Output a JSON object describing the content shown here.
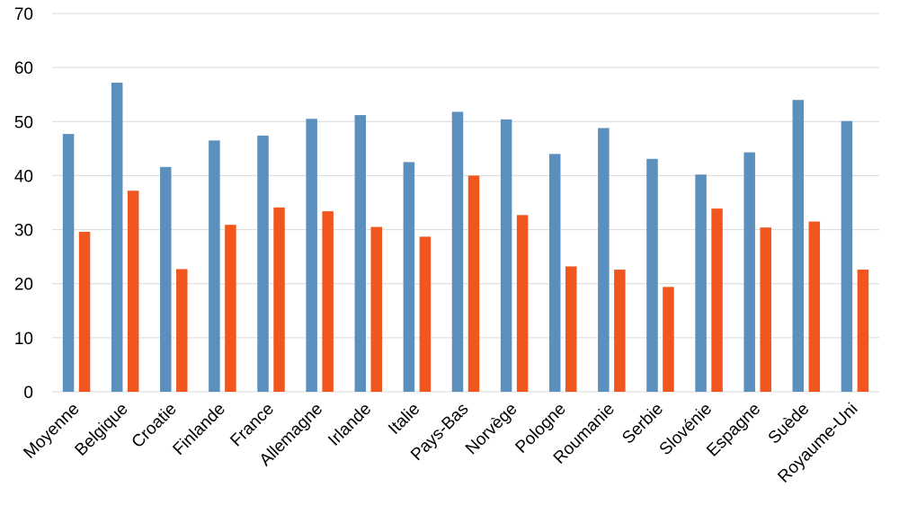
{
  "chart_data": {
    "type": "bar",
    "categories": [
      "Moyenne",
      "Belgique",
      "Croatie",
      "Finlande",
      "France",
      "Allemagne",
      "Irlande",
      "Italie",
      "Pays-Bas",
      "Norvège",
      "Pologne",
      "Roumanie",
      "Serbie",
      "Slovénie",
      "Espagne",
      "Suède",
      "Royaume-Uni"
    ],
    "series": [
      {
        "color": "#5b8fbe",
        "values": [
          47.7,
          57.2,
          41.6,
          46.5,
          47.4,
          50.5,
          51.2,
          42.5,
          51.8,
          50.4,
          44.0,
          48.8,
          43.1,
          40.2,
          44.3,
          54.0,
          50.1
        ]
      },
      {
        "color": "#f0561e",
        "values": [
          29.6,
          37.2,
          22.7,
          30.9,
          34.1,
          33.4,
          30.5,
          28.7,
          40.0,
          32.7,
          23.2,
          22.6,
          19.4,
          33.9,
          30.4,
          31.5,
          22.6
        ]
      }
    ],
    "y_ticks": [
      "0",
      "10",
      "20",
      "30",
      "40",
      "50",
      "60",
      "70"
    ],
    "ylim": [
      0,
      70
    ],
    "grid": true,
    "legend": "none",
    "title": "",
    "xlabel": "",
    "ylabel": ""
  }
}
